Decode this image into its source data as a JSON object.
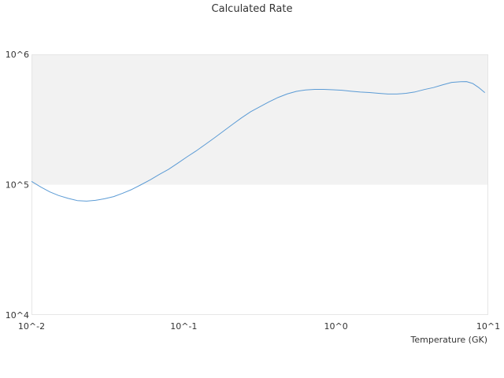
{
  "chart_data": {
    "type": "line",
    "title": "Calculated Rate",
    "xlabel": "Temperature (GK)",
    "ylabel": "",
    "x_scale": "log",
    "y_scale": "log",
    "xlim": [
      0.01,
      10
    ],
    "ylim": [
      10000,
      1000000
    ],
    "x_ticks": [
      {
        "value": 0.01,
        "label": "10^-2"
      },
      {
        "value": 0.1,
        "label": "10^-1"
      },
      {
        "value": 1,
        "label": "10^0"
      },
      {
        "value": 10,
        "label": "10^1"
      }
    ],
    "y_ticks": [
      {
        "value": 10000,
        "label": "10^4"
      },
      {
        "value": 100000,
        "label": "10^5"
      },
      {
        "value": 1000000,
        "label": "10^6"
      }
    ],
    "band": {
      "from": 100000,
      "to": 1000000,
      "color": "#f2f2f2"
    },
    "grid": false,
    "legend": "none",
    "series": [
      {
        "color": "#5b9bd5",
        "x": [
          0.01,
          0.0115,
          0.0132,
          0.0151,
          0.0174,
          0.02,
          0.023,
          0.0263,
          0.0302,
          0.0347,
          0.0398,
          0.0457,
          0.0525,
          0.0603,
          0.0692,
          0.0794,
          0.0912,
          0.1047,
          0.1202,
          0.138,
          0.1585,
          0.182,
          0.2089,
          0.2399,
          0.2754,
          0.3162,
          0.3631,
          0.4169,
          0.4786,
          0.5495,
          0.631,
          0.7244,
          0.8318,
          0.955,
          1.0965,
          1.2589,
          1.4454,
          1.6596,
          1.9055,
          2.1878,
          2.5119,
          2.884,
          3.3113,
          3.8019,
          4.3652,
          5.0119,
          5.7544,
          6.6069,
          7.2,
          7.9,
          8.7,
          9.5
        ],
        "y": [
          106000,
          96000,
          88000,
          82500,
          78500,
          75500,
          74800,
          75800,
          78000,
          81000,
          86000,
          92000,
          100000,
          109000,
          120000,
          131000,
          146000,
          163000,
          181000,
          203000,
          228000,
          257000,
          290000,
          326000,
          363000,
          396000,
          432000,
          467000,
          497000,
          520000,
          533000,
          538000,
          538000,
          535000,
          530000,
          521000,
          514000,
          509000,
          502000,
          496000,
          496000,
          502000,
          515000,
          537000,
          556000,
          583000,
          609000,
          617000,
          618000,
          598000,
          554000,
          508000
        ]
      }
    ]
  }
}
